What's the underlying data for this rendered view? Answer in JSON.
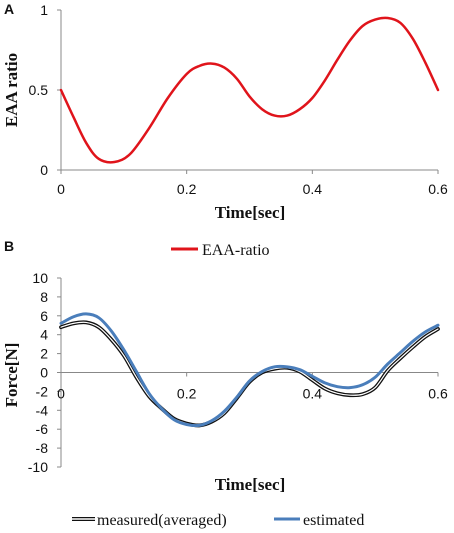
{
  "chart_data": [
    {
      "panel_label": "A",
      "type": "line",
      "xlabel": "Time[sec]",
      "ylabel": "EAA ratio",
      "xlim": [
        0,
        0.6
      ],
      "ylim": [
        0,
        1
      ],
      "x_ticks": [
        "0",
        "0.2",
        "0.4",
        "0.6"
      ],
      "y_ticks": [
        "0",
        "0.5",
        "1"
      ],
      "grid": false,
      "legend_position": "bottom-center",
      "series": [
        {
          "name": "EAA-ratio",
          "color": "#e0141b",
          "x": [
            0,
            0.02,
            0.04,
            0.06,
            0.085,
            0.11,
            0.14,
            0.17,
            0.2,
            0.22,
            0.24,
            0.26,
            0.28,
            0.3,
            0.32,
            0.34,
            0.36,
            0.38,
            0.4,
            0.42,
            0.44,
            0.46,
            0.48,
            0.5,
            0.52,
            0.54,
            0.56,
            0.58,
            0.6
          ],
          "y": [
            0.5,
            0.33,
            0.17,
            0.07,
            0.05,
            0.1,
            0.26,
            0.45,
            0.6,
            0.65,
            0.665,
            0.64,
            0.57,
            0.46,
            0.38,
            0.34,
            0.34,
            0.38,
            0.45,
            0.56,
            0.69,
            0.81,
            0.9,
            0.94,
            0.95,
            0.92,
            0.82,
            0.67,
            0.5
          ]
        }
      ]
    },
    {
      "panel_label": "B",
      "type": "line",
      "xlabel": "Time[sec]",
      "ylabel": "Force[N]",
      "xlim": [
        0,
        0.6
      ],
      "ylim": [
        -10,
        10
      ],
      "x_ticks": [
        "0",
        "0.2",
        "0.4",
        "0.6"
      ],
      "y_ticks": [
        "10",
        "8",
        "6",
        "4",
        "2",
        "0",
        "-2",
        "-4",
        "-6",
        "-8",
        "-10"
      ],
      "grid": false,
      "legend_position": "bottom-center",
      "series": [
        {
          "name": "measured(averaged)",
          "color": "#111111",
          "x": [
            0,
            0.02,
            0.04,
            0.06,
            0.08,
            0.1,
            0.12,
            0.14,
            0.16,
            0.18,
            0.2,
            0.22,
            0.24,
            0.26,
            0.28,
            0.3,
            0.32,
            0.34,
            0.36,
            0.38,
            0.4,
            0.42,
            0.44,
            0.46,
            0.48,
            0.5,
            0.52,
            0.54,
            0.56,
            0.58,
            0.6
          ],
          "y": [
            4.8,
            5.2,
            5.3,
            4.8,
            3.5,
            1.8,
            -0.5,
            -2.5,
            -3.8,
            -4.9,
            -5.4,
            -5.6,
            -5.2,
            -4.3,
            -2.7,
            -1.0,
            0.0,
            0.4,
            0.5,
            0.1,
            -0.8,
            -1.7,
            -2.2,
            -2.4,
            -2.3,
            -1.6,
            0.2,
            1.5,
            2.7,
            3.8,
            4.6
          ]
        },
        {
          "name": "estimated",
          "color": "#4a7ebb",
          "x": [
            0,
            0.02,
            0.04,
            0.06,
            0.08,
            0.1,
            0.12,
            0.14,
            0.16,
            0.18,
            0.2,
            0.22,
            0.24,
            0.26,
            0.28,
            0.3,
            0.32,
            0.34,
            0.36,
            0.38,
            0.4,
            0.42,
            0.44,
            0.46,
            0.48,
            0.5,
            0.52,
            0.54,
            0.56,
            0.58,
            0.6
          ],
          "y": [
            5.2,
            5.9,
            6.2,
            5.8,
            4.4,
            2.4,
            0.1,
            -2.2,
            -3.8,
            -5.0,
            -5.5,
            -5.6,
            -5.1,
            -4.1,
            -2.6,
            -0.9,
            0.1,
            0.6,
            0.6,
            0.3,
            -0.4,
            -1.1,
            -1.5,
            -1.6,
            -1.3,
            -0.5,
            0.9,
            2.1,
            3.3,
            4.3,
            5.0
          ]
        }
      ]
    }
  ]
}
